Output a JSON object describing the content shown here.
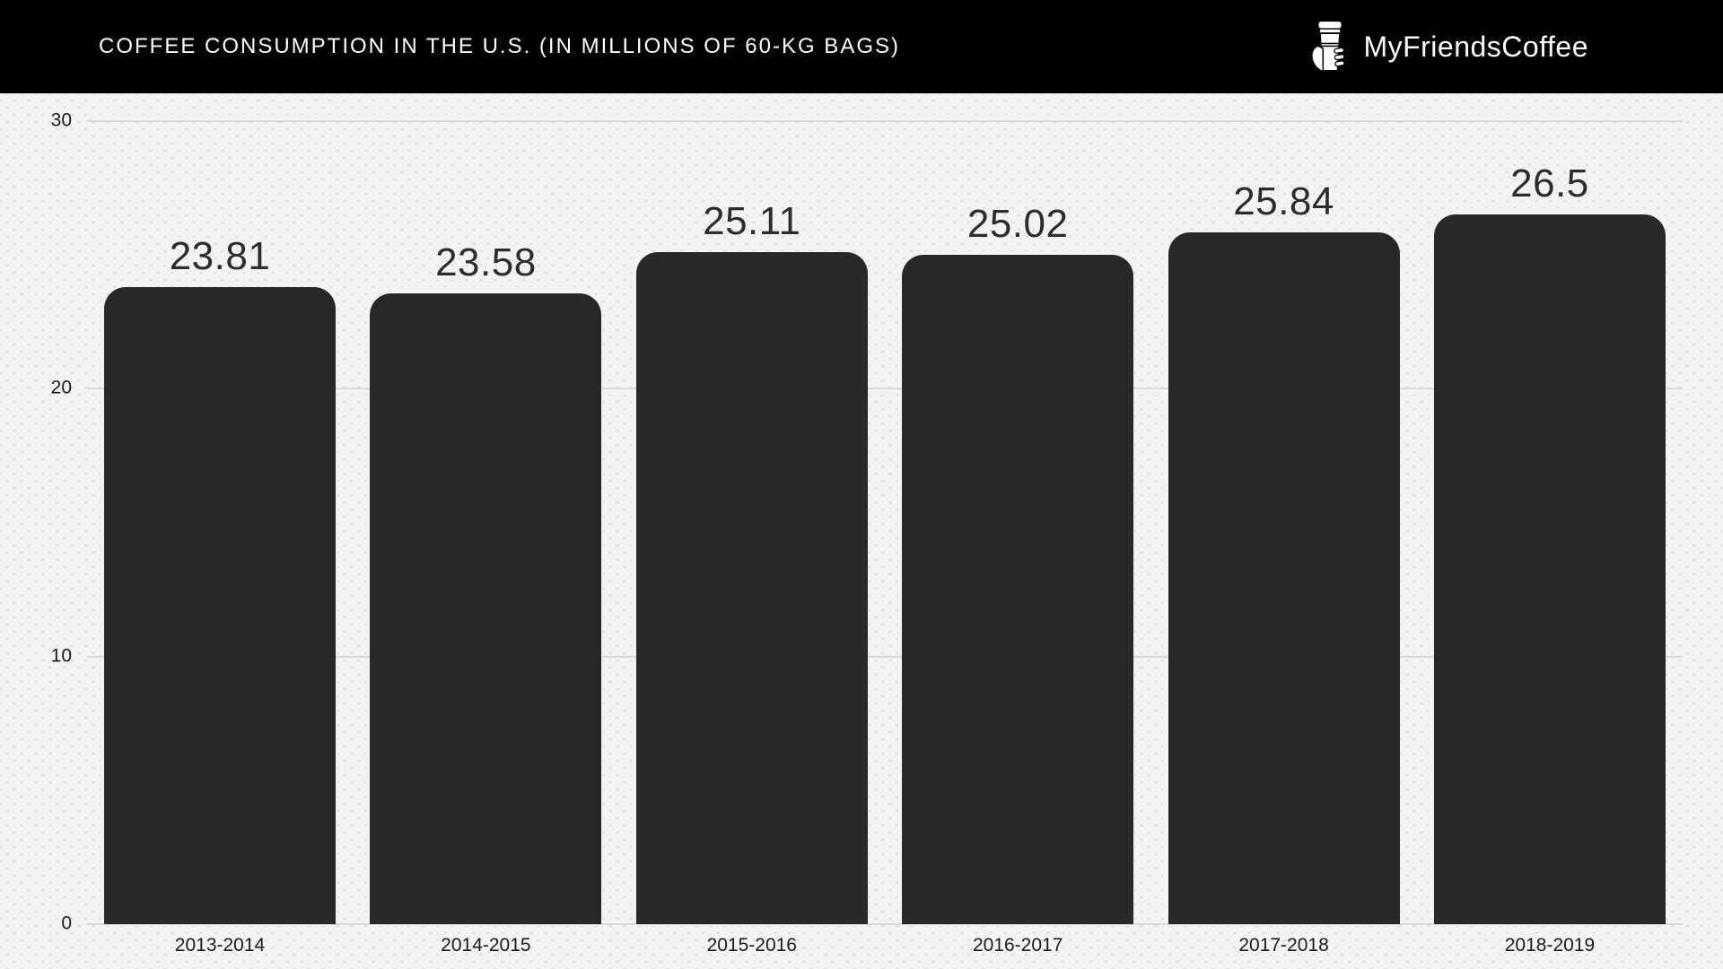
{
  "header": {
    "title": "COFFEE CONSUMPTION IN THE U.S. (IN MILLIONS OF 60-KG BAGS)",
    "brand_name": "MyFriendsCoffee",
    "brand_icon": "coffee-cup-in-hand-icon",
    "background": "#000000",
    "text_color": "#ffffff"
  },
  "chart_data": {
    "type": "bar",
    "title": "COFFEE CONSUMPTION IN THE U.S. (IN MILLIONS OF 60-KG BAGS)",
    "categories": [
      "2013-2014",
      "2014-2015",
      "2015-2016",
      "2016-2017",
      "2017-2018",
      "2018-2019"
    ],
    "values": [
      23.81,
      23.58,
      25.11,
      25.02,
      25.84,
      26.5
    ],
    "value_labels": [
      "23.81",
      "23.58",
      "25.11",
      "25.02",
      "25.84",
      "26.5"
    ],
    "xlabel": "",
    "ylabel": "",
    "ylim": [
      0,
      30
    ],
    "yticks": [
      30,
      20,
      10,
      0
    ],
    "grid": "horizontal",
    "legend": "none",
    "bar_color": "#282828",
    "background_color": "#f4f3f1",
    "dot_texture_color": "#dedddb",
    "gridline_color": "#d9d8d6",
    "value_label_color": "#2d2d2d",
    "tick_label_color": "#1c1c1c"
  }
}
